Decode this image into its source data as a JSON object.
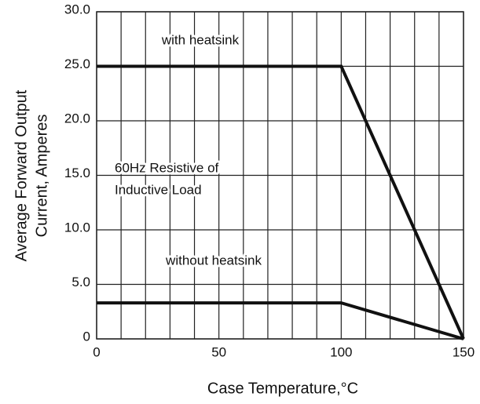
{
  "chart_data": {
    "type": "line",
    "xlabel": "Case Temperature,°C",
    "ylabel": [
      "Average Forward Output",
      "Current, Amperes"
    ],
    "annotations": [
      "with heatsink",
      "60Hz Resistive of",
      "Inductive Load",
      "without heatsink"
    ],
    "series": [
      {
        "name": "with heatsink",
        "color": "#111111",
        "x": [
          0,
          100,
          150
        ],
        "values": [
          25,
          25,
          0
        ]
      },
      {
        "name": "without heatsink",
        "color": "#111111",
        "x": [
          0,
          100,
          150
        ],
        "values": [
          3.3,
          3.3,
          0
        ]
      }
    ],
    "xlim": [
      0,
      150
    ],
    "xticks": [
      0,
      50,
      100,
      150
    ],
    "xgrid": [
      0,
      10,
      20,
      30,
      40,
      50,
      60,
      70,
      80,
      90,
      100,
      110,
      120,
      130,
      140,
      150
    ],
    "ylim": [
      0,
      30
    ],
    "yticks": [
      {
        "value": 0,
        "label": "0"
      },
      {
        "value": 5,
        "label": "5.0"
      },
      {
        "value": 10,
        "label": "10.0"
      },
      {
        "value": 15,
        "label": "15.0"
      },
      {
        "value": 20,
        "label": "20.0"
      },
      {
        "value": 25,
        "label": "25.0"
      },
      {
        "value": 30,
        "label": "30.0"
      }
    ],
    "grid": true
  }
}
